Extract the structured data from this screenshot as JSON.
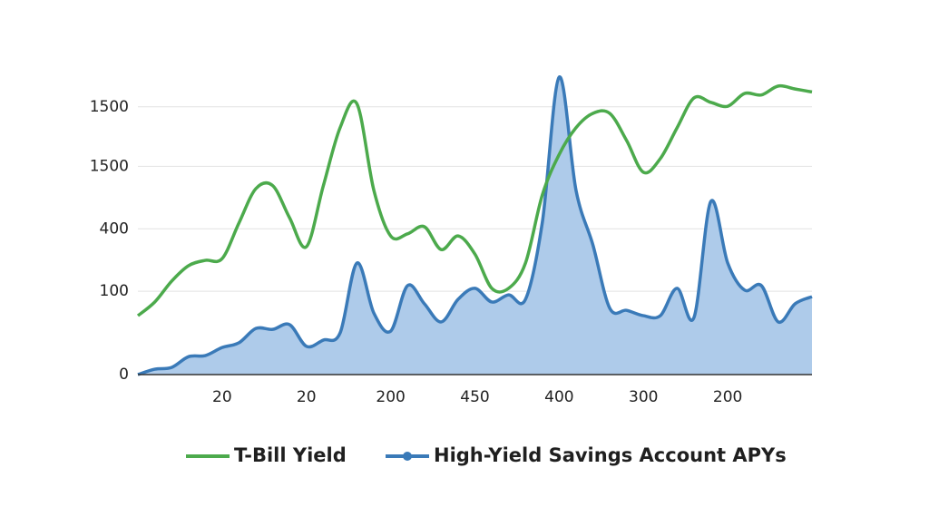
{
  "chart_data": {
    "type": "line",
    "x": [
      0,
      1,
      2,
      3,
      4,
      5,
      6,
      7,
      8,
      9,
      10,
      11,
      12,
      13,
      14,
      15,
      16,
      17,
      18,
      19,
      20,
      21,
      22,
      23,
      24,
      25,
      26,
      27,
      28,
      29,
      30,
      31,
      32,
      33,
      34,
      35,
      36,
      37,
      38,
      39,
      40
    ],
    "xlim": [
      0,
      40
    ],
    "xticks": [
      {
        "value": 5,
        "label": "20"
      },
      {
        "value": 10,
        "label": "20"
      },
      {
        "value": 15,
        "label": "200"
      },
      {
        "value": 20,
        "label": "450"
      },
      {
        "value": 25,
        "label": "400"
      },
      {
        "value": 30,
        "label": "300"
      },
      {
        "value": 35,
        "label": "200"
      }
    ],
    "ylim": [
      0,
      100
    ],
    "yticks": [
      0,
      {
        "value": 28,
        "label": "100"
      },
      {
        "value": 49,
        "label": "400"
      },
      {
        "value": 70,
        "label": "1500"
      },
      {
        "value": 90,
        "label": "1500"
      }
    ],
    "grid": true,
    "series": [
      {
        "name": "T-Bill Yield",
        "color": "#4caa4c",
        "values": [
          19.8,
          24.4,
          31.4,
          36.6,
          38.4,
          39,
          51,
          62.5,
          63.5,
          52.7,
          43,
          63.4,
          83,
          91,
          62,
          46.6,
          47.3,
          49.7,
          42,
          46.6,
          40.5,
          29,
          29,
          37.5,
          60.4,
          74,
          83,
          87.8,
          87.8,
          78.7,
          68,
          72.6,
          83,
          93,
          91.5,
          90.2,
          94.5,
          94,
          97,
          96,
          95
        ]
      },
      {
        "name": "High-Yield Savings Account APYs",
        "color": "#3a7ab8",
        "fill": "#aecbea",
        "values": [
          0,
          1.8,
          2.4,
          6,
          6.4,
          9.1,
          10.7,
          15.5,
          15.2,
          16.8,
          9.5,
          11.6,
          14,
          37.5,
          20.7,
          14.6,
          29.9,
          23.8,
          17.7,
          25.3,
          29,
          24.4,
          26.8,
          25.3,
          51.2,
          100,
          61.9,
          43.6,
          22.3,
          21.6,
          19.8,
          19.8,
          29,
          19.2,
          58.2,
          37.5,
          28.4,
          29.9,
          17.7,
          23.8,
          26.2
        ]
      }
    ]
  }
}
